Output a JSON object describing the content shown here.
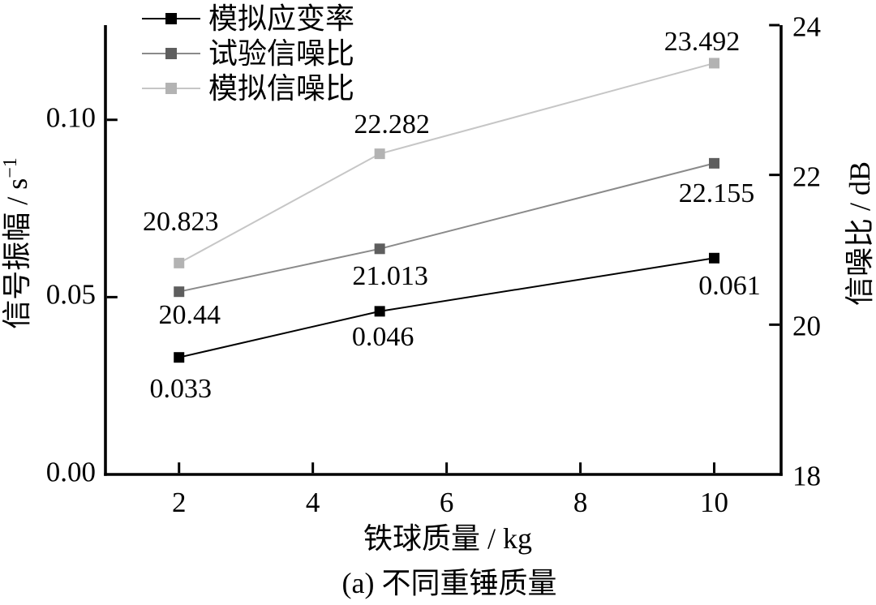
{
  "figure": {
    "caption": "(a) 不同重锤质量"
  },
  "chart_data": {
    "type": "line",
    "xlabel": "铁球质量 / kg",
    "ylabel_left": {
      "text": "信号振幅 / s",
      "sup": "−1"
    },
    "ylabel_right": "信噪比 / dB",
    "x": [
      2,
      5,
      10
    ],
    "xlim": [
      0.9,
      11.0
    ],
    "xticks": [
      {
        "v": 2,
        "label": "2"
      },
      {
        "v": 4,
        "label": "4"
      },
      {
        "v": 6,
        "label": "6"
      },
      {
        "v": 8,
        "label": "8"
      },
      {
        "v": 10,
        "label": "10"
      }
    ],
    "ylim_left": [
      0,
      0.1267
    ],
    "yticks_left": [
      {
        "v": 0.0,
        "label": "0.00"
      },
      {
        "v": 0.05,
        "label": "0.05"
      },
      {
        "v": 0.1,
        "label": "0.10"
      }
    ],
    "ylim_right": [
      18,
      24
    ],
    "yticks_right": [
      {
        "v": 18,
        "label": "18"
      },
      {
        "v": 20,
        "label": "20"
      },
      {
        "v": 22,
        "label": "22"
      },
      {
        "v": 24,
        "label": "24"
      }
    ],
    "grid": false,
    "legend_position": "top-left-inside",
    "series": [
      {
        "name": "模拟应变率",
        "axis": "left",
        "marker_color": "#000000",
        "line_color": "#000000",
        "values": [
          0.033,
          0.046,
          0.061
        ],
        "labels": [
          "0.033",
          "0.046",
          "0.061"
        ],
        "label_offsets": [
          [
            2,
            39
          ],
          [
            4,
            32
          ],
          [
            19,
            35
          ]
        ]
      },
      {
        "name": "试验信噪比",
        "axis": "right",
        "marker_color": "#5e5e5e",
        "line_color": "#8a8a8a",
        "values": [
          20.44,
          21.013,
          22.155
        ],
        "labels": [
          "20.44",
          "21.013",
          "22.155"
        ],
        "label_offsets": [
          [
            13,
            29
          ],
          [
            13,
            34
          ],
          [
            3,
            38
          ]
        ]
      },
      {
        "name": "模拟信噪比",
        "axis": "right",
        "marker_color": "#b3b3b3",
        "line_color": "#c6c6c6",
        "values": [
          20.823,
          22.282,
          23.492
        ],
        "labels": [
          "20.823",
          "22.282",
          "23.492"
        ],
        "label_offsets": [
          [
            2,
            -50
          ],
          [
            15,
            -36
          ],
          [
            -15,
            -26
          ]
        ]
      }
    ]
  }
}
